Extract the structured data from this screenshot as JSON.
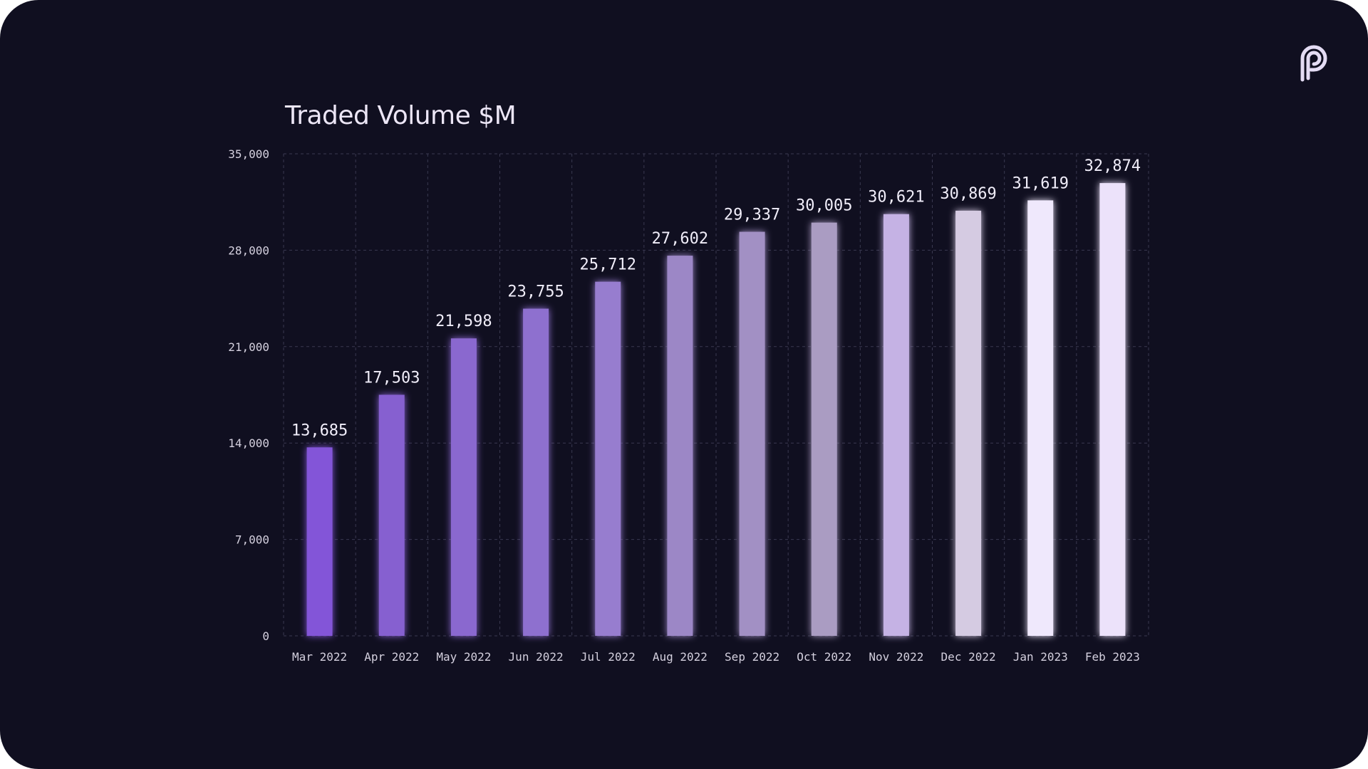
{
  "chart_data": {
    "type": "bar",
    "title": "Traded Volume $M",
    "xlabel": "",
    "ylabel": "",
    "categories": [
      "Mar 2022",
      "Apr 2022",
      "May 2022",
      "Jun 2022",
      "Jul 2022",
      "Aug 2022",
      "Sep 2022",
      "Oct 2022",
      "Nov 2022",
      "Dec 2022",
      "Jan 2023",
      "Feb 2023"
    ],
    "values": [
      13685,
      17503,
      21598,
      23755,
      25712,
      27602,
      29337,
      30005,
      30621,
      30869,
      31619,
      32874
    ],
    "value_labels": [
      "13,685",
      "17,503",
      "21,598",
      "23,755",
      "25,712",
      "27,602",
      "29,337",
      "30,005",
      "30,621",
      "30,869",
      "31,619",
      "32,874"
    ],
    "yticks": [
      0,
      7000,
      14000,
      21000,
      28000,
      35000
    ],
    "ytick_labels": [
      "0",
      "7,000",
      "14,000",
      "21,000",
      "28,000",
      "35,000"
    ],
    "ylim": [
      0,
      35000
    ],
    "grid": true,
    "legend": "none",
    "bar_colors": [
      "#8355d8",
      "#8660d0",
      "#8a68cf",
      "#8e70cf",
      "#977dcf",
      "#9c87c6",
      "#a290c4",
      "#aa9cc2",
      "#c5b2e4",
      "#d5cbe2",
      "#efe8fc",
      "#ece2fa"
    ]
  },
  "colors": {
    "background": "#100f20",
    "page": "#ffffff",
    "grid": "#3a3950",
    "text": "#ece6f6"
  },
  "logo": {
    "icon": "brand-p-logo-icon"
  }
}
